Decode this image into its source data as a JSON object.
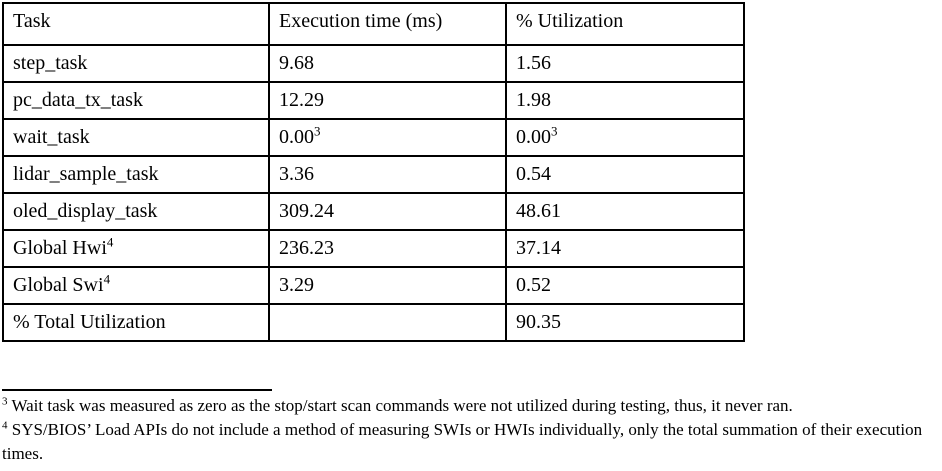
{
  "table": {
    "headers": [
      "Task",
      "Execution time (ms)",
      "% Utilization"
    ],
    "rows": [
      {
        "cells": [
          {
            "text": "step_task"
          },
          {
            "text": "9.68"
          },
          {
            "text": "1.56"
          }
        ]
      },
      {
        "cells": [
          {
            "text": "pc_data_tx_task"
          },
          {
            "text": "12.29"
          },
          {
            "text": "1.98"
          }
        ]
      },
      {
        "cells": [
          {
            "text": "wait_task"
          },
          {
            "text": "0.00",
            "sup": "3"
          },
          {
            "text": "0.00",
            "sup": "3"
          }
        ]
      },
      {
        "cells": [
          {
            "text": "lidar_sample_task"
          },
          {
            "text": "3.36"
          },
          {
            "text": "0.54"
          }
        ]
      },
      {
        "cells": [
          {
            "text": "oled_display_task"
          },
          {
            "text": "309.24"
          },
          {
            "text": "48.61"
          }
        ]
      },
      {
        "cells": [
          {
            "text": "Global Hwi",
            "sup": "4"
          },
          {
            "text": "236.23"
          },
          {
            "text": "37.14"
          }
        ]
      },
      {
        "cells": [
          {
            "text": "Global Swi",
            "sup": "4"
          },
          {
            "text": "3.29"
          },
          {
            "text": "0.52"
          }
        ]
      },
      {
        "cells": [
          {
            "text": "% Total Utilization"
          },
          {
            "text": ""
          },
          {
            "text": "90.35"
          }
        ]
      }
    ]
  },
  "footnotes": [
    {
      "marker": "3",
      "text": "Wait task was measured as zero as the stop/start scan commands were not utilized during testing, thus, it never ran."
    },
    {
      "marker": "4",
      "text": "SYS/BIOS’ Load APIs do not include a method of measuring SWIs or HWIs individually, only the total summation of their execution times."
    }
  ]
}
